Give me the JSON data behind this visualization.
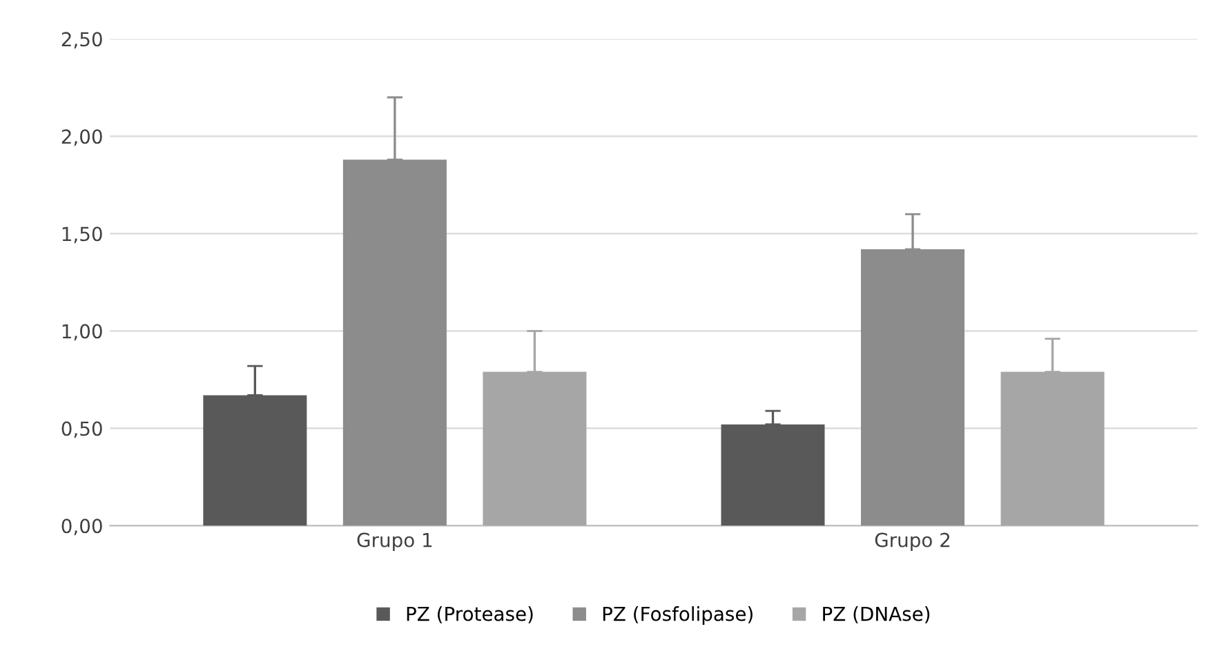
{
  "chart_data": {
    "type": "bar",
    "categories": [
      "Grupo 1",
      "Grupo 2"
    ],
    "series": [
      {
        "name": "PZ (Protease)",
        "color": "#595959",
        "values": [
          0.67,
          0.52
        ],
        "errors": [
          [
            0.67,
            0.82
          ],
          [
            0.52,
            0.59
          ]
        ]
      },
      {
        "name": "PZ (Fosfolipase)",
        "color": "#8c8c8c",
        "values": [
          1.88,
          1.42
        ],
        "errors": [
          [
            1.88,
            2.2
          ],
          [
            1.42,
            1.6
          ]
        ]
      },
      {
        "name": "PZ (DNAse)",
        "color": "#a6a6a6",
        "values": [
          0.79,
          0.79
        ],
        "errors": [
          [
            0.79,
            1.0
          ],
          [
            0.79,
            0.96
          ]
        ]
      }
    ],
    "ylim": [
      0,
      2.5
    ],
    "yticks": [
      {
        "value": 0,
        "label": "0,00"
      },
      {
        "value": 0.5,
        "label": "0,50"
      },
      {
        "value": 1,
        "label": "1,00"
      },
      {
        "value": 1.5,
        "label": "1,50"
      },
      {
        "value": 2,
        "label": "2,00"
      },
      {
        "value": 2.5,
        "label": "2,50"
      }
    ],
    "grid": "y",
    "legend": "bottom"
  }
}
